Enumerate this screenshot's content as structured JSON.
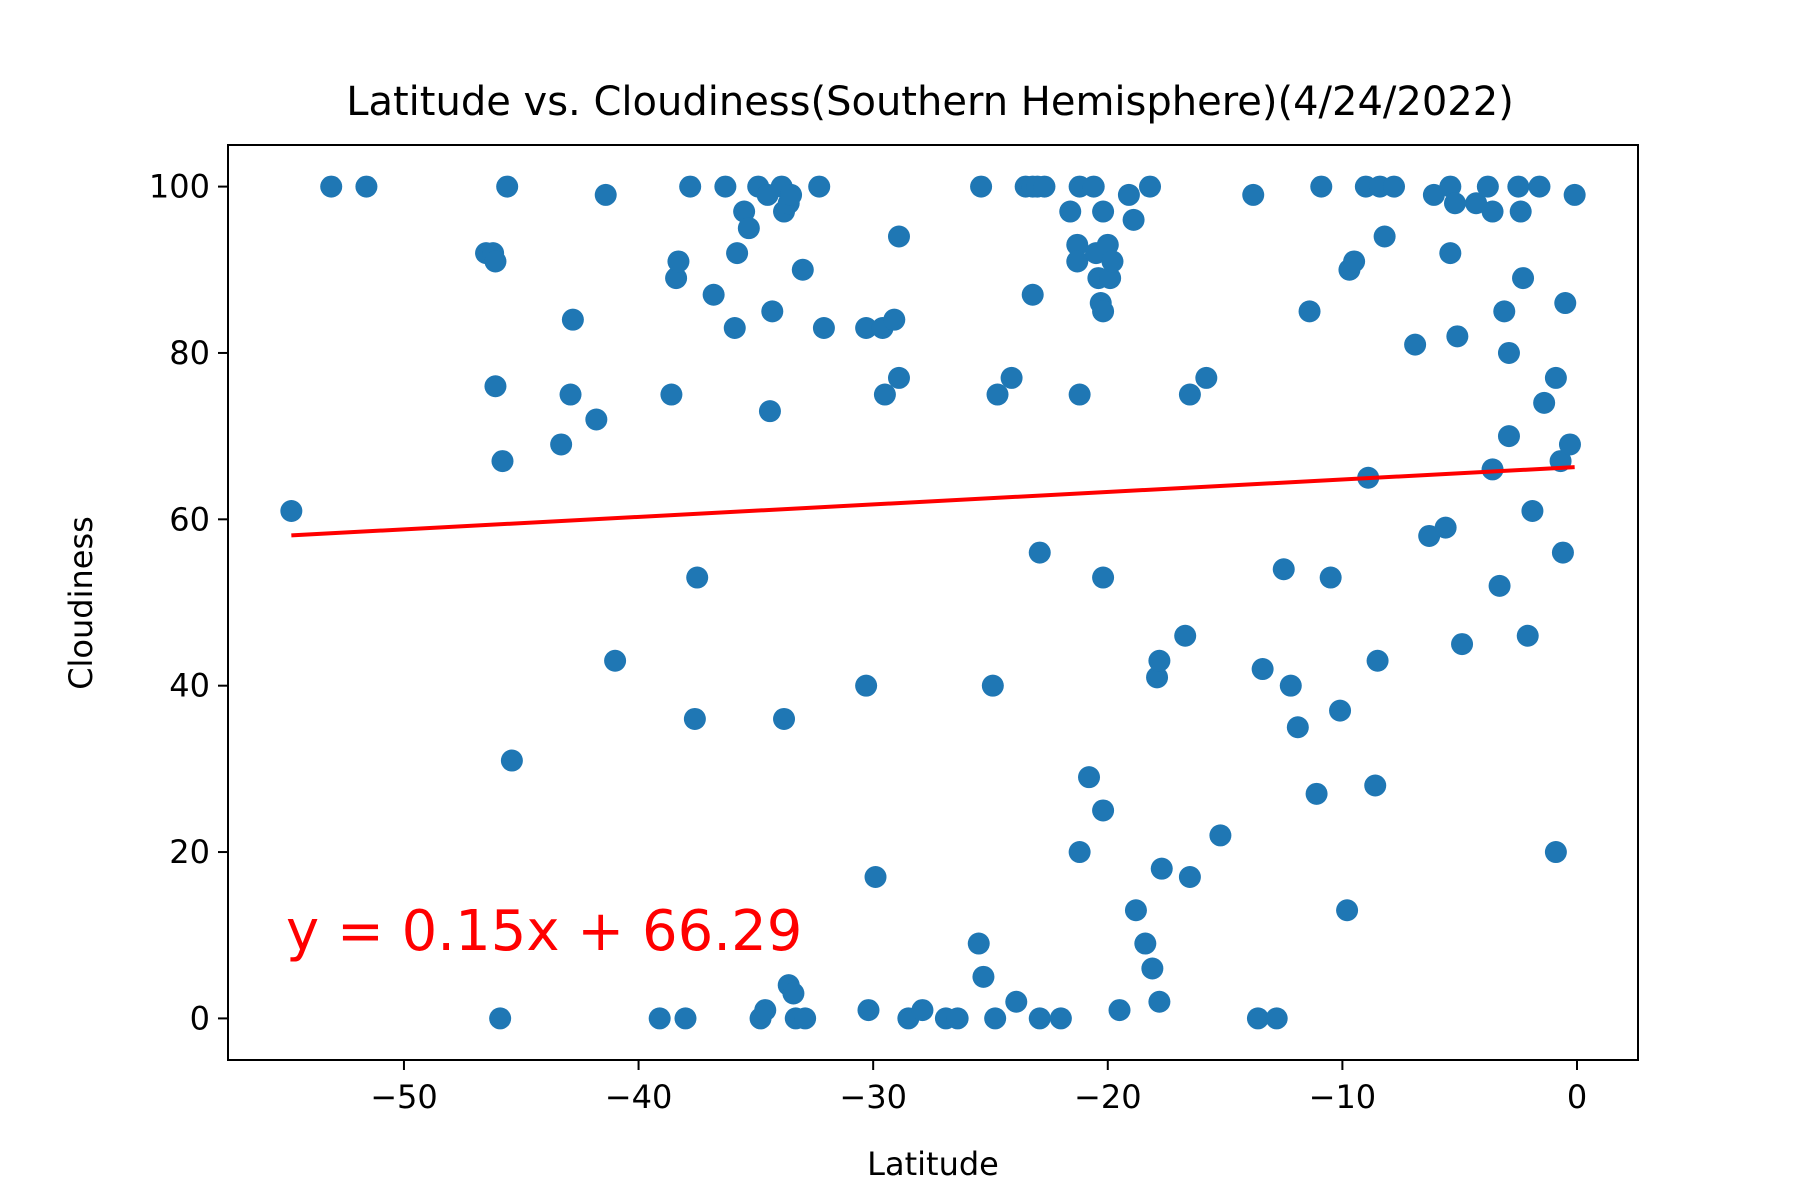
{
  "chart_data": {
    "type": "scatter",
    "title": "Latitude vs. Cloudiness(Southern Hemisphere)(4/24/2022)",
    "xlabel": "Latitude",
    "ylabel": "Cloudiness",
    "xlim": [
      -57.5,
      2.6
    ],
    "ylim": [
      -5,
      105
    ],
    "xticks": [
      -50,
      -40,
      -30,
      -20,
      -10,
      0
    ],
    "xtick_labels": [
      "−50",
      "−40",
      "−30",
      "−20",
      "−10",
      "0"
    ],
    "yticks": [
      0,
      20,
      40,
      60,
      80,
      100
    ],
    "ytick_labels": [
      "0",
      "20",
      "40",
      "60",
      "80",
      "100"
    ],
    "grid": false,
    "point_color": "#1f77b4",
    "regression": {
      "equation": "y = 0.15x + 66.29",
      "slope": 0.15,
      "intercept": 66.29,
      "x_range": [
        -54.8,
        -0.1
      ],
      "color": "#ff0000"
    },
    "points": [
      [
        -54.8,
        61
      ],
      [
        -53.1,
        100
      ],
      [
        -51.6,
        100
      ],
      [
        -46.5,
        92
      ],
      [
        -46.2,
        92
      ],
      [
        -46.1,
        91
      ],
      [
        -46.1,
        76
      ],
      [
        -45.8,
        67
      ],
      [
        -45.9,
        0
      ],
      [
        -45.6,
        100
      ],
      [
        -45.4,
        31
      ],
      [
        -43.3,
        69
      ],
      [
        -42.9,
        75
      ],
      [
        -42.8,
        84
      ],
      [
        -41.8,
        72
      ],
      [
        -41.4,
        99
      ],
      [
        -41.0,
        43
      ],
      [
        -39.1,
        0
      ],
      [
        -38.6,
        75
      ],
      [
        -38.4,
        89
      ],
      [
        -38.3,
        91
      ],
      [
        -38.0,
        0
      ],
      [
        -37.8,
        100
      ],
      [
        -37.6,
        36
      ],
      [
        -37.5,
        53
      ],
      [
        -36.8,
        87
      ],
      [
        -36.3,
        100
      ],
      [
        -35.9,
        83
      ],
      [
        -35.8,
        92
      ],
      [
        -35.5,
        97
      ],
      [
        -35.3,
        95
      ],
      [
        -34.9,
        100
      ],
      [
        -34.8,
        0
      ],
      [
        -34.6,
        1
      ],
      [
        -34.5,
        99
      ],
      [
        -34.4,
        73
      ],
      [
        -34.3,
        85
      ],
      [
        -33.9,
        100
      ],
      [
        -33.8,
        97
      ],
      [
        -33.8,
        36
      ],
      [
        -33.6,
        98
      ],
      [
        -33.5,
        99
      ],
      [
        -33.6,
        4
      ],
      [
        -33.4,
        3
      ],
      [
        -33.3,
        0
      ],
      [
        -33.0,
        90
      ],
      [
        -32.9,
        0
      ],
      [
        -32.3,
        100
      ],
      [
        -32.1,
        83
      ],
      [
        -30.3,
        83
      ],
      [
        -30.3,
        40
      ],
      [
        -30.2,
        1
      ],
      [
        -29.9,
        17
      ],
      [
        -29.6,
        83
      ],
      [
        -29.5,
        75
      ],
      [
        -29.1,
        84
      ],
      [
        -28.9,
        94
      ],
      [
        -28.9,
        77
      ],
      [
        -28.5,
        0
      ],
      [
        -27.9,
        1
      ],
      [
        -26.9,
        0
      ],
      [
        -26.4,
        0
      ],
      [
        -25.5,
        9
      ],
      [
        -25.4,
        100
      ],
      [
        -25.3,
        5
      ],
      [
        -24.9,
        40
      ],
      [
        -24.8,
        0
      ],
      [
        -24.7,
        75
      ],
      [
        -24.1,
        77
      ],
      [
        -23.9,
        2
      ],
      [
        -23.5,
        100
      ],
      [
        -23.2,
        100
      ],
      [
        -23.2,
        87
      ],
      [
        -22.9,
        56
      ],
      [
        -23.0,
        100
      ],
      [
        -22.7,
        100
      ],
      [
        -22.9,
        0
      ],
      [
        -22.0,
        0
      ],
      [
        -21.6,
        97
      ],
      [
        -21.3,
        93
      ],
      [
        -21.3,
        91
      ],
      [
        -21.2,
        100
      ],
      [
        -21.2,
        75
      ],
      [
        -21.2,
        20
      ],
      [
        -20.8,
        29
      ],
      [
        -20.6,
        100
      ],
      [
        -20.5,
        92
      ],
      [
        -20.4,
        89
      ],
      [
        -20.3,
        86
      ],
      [
        -20.2,
        97
      ],
      [
        -20.2,
        85
      ],
      [
        -20.2,
        53
      ],
      [
        -20.2,
        25
      ],
      [
        -20.0,
        93
      ],
      [
        -19.9,
        89
      ],
      [
        -19.8,
        91
      ],
      [
        -19.5,
        1
      ],
      [
        -19.1,
        99
      ],
      [
        -18.9,
        96
      ],
      [
        -18.8,
        13
      ],
      [
        -18.4,
        9
      ],
      [
        -18.2,
        100
      ],
      [
        -18.1,
        6
      ],
      [
        -17.9,
        41
      ],
      [
        -17.8,
        43
      ],
      [
        -17.8,
        2
      ],
      [
        -17.7,
        18
      ],
      [
        -16.7,
        46
      ],
      [
        -16.5,
        75
      ],
      [
        -16.5,
        17
      ],
      [
        -15.8,
        77
      ],
      [
        -15.2,
        22
      ],
      [
        -13.8,
        99
      ],
      [
        -13.6,
        0
      ],
      [
        -13.4,
        42
      ],
      [
        -12.8,
        0
      ],
      [
        -12.5,
        54
      ],
      [
        -12.2,
        40
      ],
      [
        -11.9,
        35
      ],
      [
        -11.4,
        85
      ],
      [
        -11.1,
        27
      ],
      [
        -10.9,
        100
      ],
      [
        -10.5,
        53
      ],
      [
        -10.1,
        37
      ],
      [
        -9.8,
        13
      ],
      [
        -9.7,
        90
      ],
      [
        -9.5,
        91
      ],
      [
        -9.0,
        100
      ],
      [
        -8.9,
        65
      ],
      [
        -8.6,
        28
      ],
      [
        -8.5,
        43
      ],
      [
        -8.4,
        100
      ],
      [
        -8.2,
        94
      ],
      [
        -7.8,
        100
      ],
      [
        -6.9,
        81
      ],
      [
        -6.3,
        58
      ],
      [
        -6.1,
        99
      ],
      [
        -5.6,
        59
      ],
      [
        -5.4,
        100
      ],
      [
        -5.4,
        92
      ],
      [
        -5.2,
        98
      ],
      [
        -5.1,
        82
      ],
      [
        -4.9,
        45
      ],
      [
        -4.3,
        98
      ],
      [
        -3.8,
        100
      ],
      [
        -3.6,
        97
      ],
      [
        -3.6,
        66
      ],
      [
        -3.3,
        52
      ],
      [
        -3.1,
        85
      ],
      [
        -2.9,
        80
      ],
      [
        -2.9,
        70
      ],
      [
        -2.5,
        100
      ],
      [
        -2.4,
        97
      ],
      [
        -2.3,
        89
      ],
      [
        -2.1,
        46
      ],
      [
        -1.9,
        61
      ],
      [
        -1.6,
        100
      ],
      [
        -1.4,
        74
      ],
      [
        -0.9,
        77
      ],
      [
        -0.9,
        20
      ],
      [
        -0.7,
        67
      ],
      [
        -0.6,
        56
      ],
      [
        -0.5,
        86
      ],
      [
        -0.3,
        69
      ],
      [
        -0.1,
        99
      ]
    ]
  }
}
